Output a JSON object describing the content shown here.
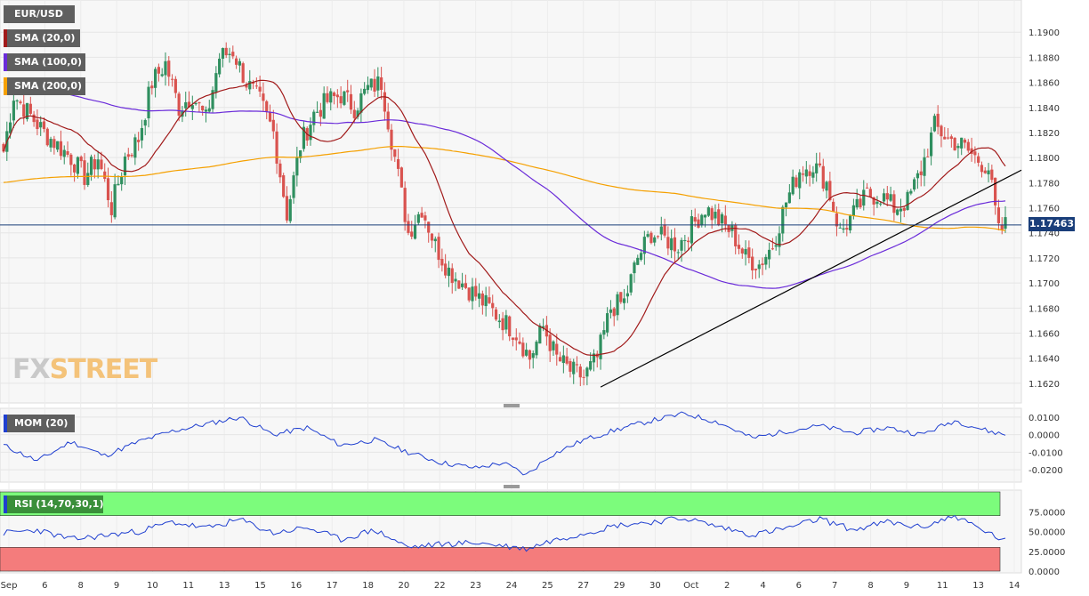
{
  "instrument": "EUR/USD",
  "indicators": {
    "sma20": {
      "label": "SMA (20,0)",
      "color": "#a11a1a"
    },
    "sma100": {
      "label": "SMA (100,0)",
      "color": "#6a2bd9"
    },
    "sma200": {
      "label": "SMA (200,0)",
      "color": "#f5a000"
    }
  },
  "watermark": {
    "part1": "FX",
    "part2": "STREET"
  },
  "price_tag": "1.17463",
  "momentum_label": "MOM (20)",
  "rsi_label": "RSI (14,70,30,1)",
  "x_labels": [
    "Sep",
    "6",
    "8",
    "9",
    "10",
    "11",
    "13",
    "15",
    "16",
    "17",
    "18",
    "20",
    "22",
    "23",
    "24",
    "25",
    "27",
    "29",
    "30",
    "Oct",
    "2",
    "4",
    "6",
    "7",
    "8",
    "9",
    "11",
    "13",
    "14"
  ],
  "colors": {
    "bull": "#2f8f5f",
    "bear": "#d9534f",
    "momentum": "#1f3fd0",
    "rsi": "#1f3fd0",
    "overbought": "#7cfc7c",
    "oversold": "#f47c7c",
    "trendline": "#000000",
    "current_line": "#1a3e7a",
    "price_tag_bg": "#1a3e7a"
  },
  "chart_data": [
    {
      "type": "candlestick",
      "title": "EUR/USD",
      "ylim": [
        1.161,
        1.192
      ],
      "y_ticks": [
        1.162,
        1.164,
        1.166,
        1.168,
        1.17,
        1.172,
        1.174,
        1.176,
        1.178,
        1.18,
        1.182,
        1.184,
        1.186,
        1.188,
        1.19
      ],
      "y_tick_labels": [
        "1.1620",
        "1.1640",
        "1.1660",
        "1.1680",
        "1.1700",
        "1.1720",
        "1.1740",
        "1.1760",
        "1.1780",
        "1.1800",
        "1.1820",
        "1.1840",
        "1.1860",
        "1.1880",
        "1.1900"
      ],
      "current_price": 1.17463,
      "anchors": [
        [
          0,
          1.1805
        ],
        [
          3,
          1.185
        ],
        [
          12,
          1.182
        ],
        [
          20,
          1.18
        ],
        [
          24,
          1.1785
        ],
        [
          28,
          1.18
        ],
        [
          32,
          1.176
        ],
        [
          36,
          1.18
        ],
        [
          40,
          1.1815
        ],
        [
          44,
          1.186
        ],
        [
          48,
          1.1875
        ],
        [
          52,
          1.184
        ],
        [
          56,
          1.185
        ],
        [
          60,
          1.183
        ],
        [
          64,
          1.188
        ],
        [
          68,
          1.1885
        ],
        [
          72,
          1.186
        ],
        [
          76,
          1.1845
        ],
        [
          80,
          1.182
        ],
        [
          84,
          1.1755
        ],
        [
          88,
          1.181
        ],
        [
          92,
          1.1835
        ],
        [
          96,
          1.1845
        ],
        [
          100,
          1.185
        ],
        [
          104,
          1.184
        ],
        [
          108,
          1.1855
        ],
        [
          112,
          1.186
        ],
        [
          116,
          1.18
        ],
        [
          120,
          1.174
        ],
        [
          124,
          1.176
        ],
        [
          128,
          1.173
        ],
        [
          132,
          1.171
        ],
        [
          136,
          1.17
        ],
        [
          140,
          1.169
        ],
        [
          144,
          1.168
        ],
        [
          148,
          1.167
        ],
        [
          152,
          1.166
        ],
        [
          156,
          1.164
        ],
        [
          160,
          1.1665
        ],
        [
          164,
          1.164
        ],
        [
          168,
          1.163
        ],
        [
          172,
          1.1625
        ],
        [
          176,
          1.164
        ],
        [
          180,
          1.168
        ],
        [
          184,
          1.1685
        ],
        [
          188,
          1.172
        ],
        [
          192,
          1.174
        ],
        [
          196,
          1.1735
        ],
        [
          200,
          1.173
        ],
        [
          204,
          1.1745
        ],
        [
          208,
          1.176
        ],
        [
          212,
          1.175
        ],
        [
          216,
          1.174
        ],
        [
          220,
          1.172
        ],
        [
          224,
          1.1715
        ],
        [
          228,
          1.173
        ],
        [
          232,
          1.1765
        ],
        [
          236,
          1.179
        ],
        [
          240,
          1.1795
        ],
        [
          244,
          1.178
        ],
        [
          248,
          1.174
        ],
        [
          252,
          1.1755
        ],
        [
          256,
          1.177
        ],
        [
          260,
          1.177
        ],
        [
          264,
          1.176
        ],
        [
          268,
          1.1765
        ],
        [
          272,
          1.179
        ],
        [
          276,
          1.1825
        ],
        [
          280,
          1.1815
        ],
        [
          284,
          1.181
        ],
        [
          288,
          1.18
        ],
        [
          292,
          1.1792
        ],
        [
          295,
          1.174
        ],
        [
          297,
          1.1746
        ]
      ],
      "trendline": {
        "from": [
          177,
          1.1617
        ],
        "to": [
          310,
          1.179
        ]
      }
    },
    {
      "type": "line",
      "title": "MOM (20)",
      "ylim": [
        -0.025,
        0.013
      ],
      "y_ticks": [
        0.01,
        0.0,
        -0.01,
        -0.02
      ],
      "y_tick_labels": [
        "0.0100",
        "0.0000",
        "-0.0100",
        "-0.0200"
      ],
      "anchors": [
        [
          0,
          -0.006
        ],
        [
          10,
          -0.015
        ],
        [
          20,
          -0.004
        ],
        [
          30,
          -0.012
        ],
        [
          40,
          -0.004
        ],
        [
          50,
          0.002
        ],
        [
          60,
          0.006
        ],
        [
          70,
          0.01
        ],
        [
          80,
          0.0
        ],
        [
          90,
          0.004
        ],
        [
          100,
          -0.006
        ],
        [
          110,
          -0.003
        ],
        [
          120,
          -0.01
        ],
        [
          130,
          -0.016
        ],
        [
          140,
          -0.019
        ],
        [
          148,
          -0.016
        ],
        [
          155,
          -0.023
        ],
        [
          162,
          -0.012
        ],
        [
          172,
          -0.003
        ],
        [
          182,
          0.003
        ],
        [
          192,
          0.008
        ],
        [
          202,
          0.012
        ],
        [
          212,
          0.007
        ],
        [
          222,
          -0.002
        ],
        [
          232,
          0.002
        ],
        [
          242,
          0.005
        ],
        [
          252,
          0.001
        ],
        [
          262,
          0.004
        ],
        [
          272,
          0.0
        ],
        [
          282,
          0.008
        ],
        [
          292,
          0.002
        ],
        [
          297,
          0.0
        ]
      ]
    },
    {
      "type": "line",
      "title": "RSI (14,70,30,1)",
      "ylim": [
        0,
        100
      ],
      "y_ticks": [
        75,
        50,
        25,
        0
      ],
      "y_tick_labels": [
        "75.0000",
        "50.0000",
        "25.0000",
        "0.0000"
      ],
      "overbought": 70,
      "oversold": 30,
      "anchors": [
        [
          0,
          48
        ],
        [
          10,
          52
        ],
        [
          20,
          40
        ],
        [
          30,
          45
        ],
        [
          40,
          50
        ],
        [
          50,
          62
        ],
        [
          60,
          54
        ],
        [
          70,
          65
        ],
        [
          80,
          48
        ],
        [
          90,
          55
        ],
        [
          100,
          40
        ],
        [
          110,
          52
        ],
        [
          120,
          30
        ],
        [
          130,
          34
        ],
        [
          140,
          36
        ],
        [
          148,
          32
        ],
        [
          155,
          28
        ],
        [
          162,
          38
        ],
        [
          172,
          48
        ],
        [
          182,
          58
        ],
        [
          192,
          62
        ],
        [
          202,
          67
        ],
        [
          212,
          56
        ],
        [
          222,
          46
        ],
        [
          232,
          54
        ],
        [
          242,
          66
        ],
        [
          252,
          52
        ],
        [
          262,
          62
        ],
        [
          272,
          55
        ],
        [
          282,
          70
        ],
        [
          292,
          48
        ],
        [
          297,
          38
        ]
      ]
    }
  ]
}
